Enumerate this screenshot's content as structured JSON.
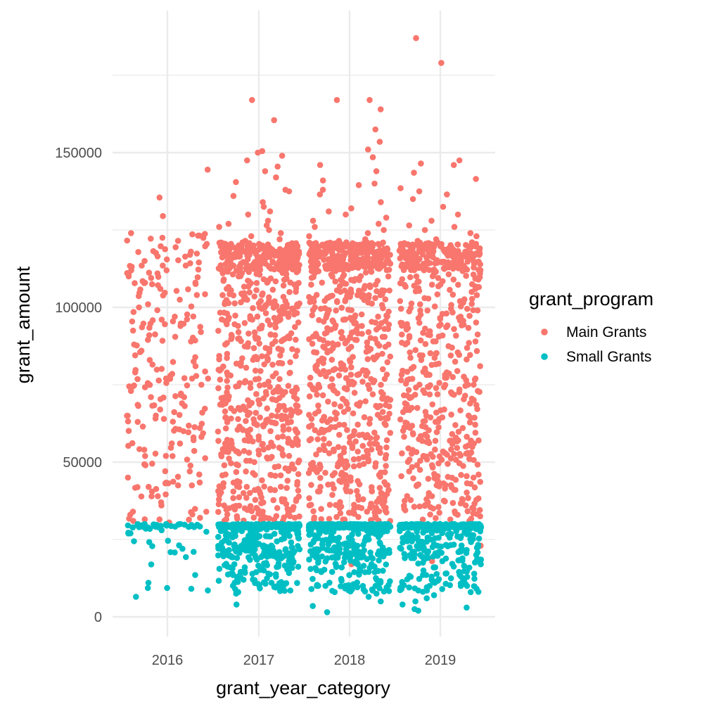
{
  "chart_data": {
    "type": "scatter",
    "jitter": true,
    "categories": [
      "2016",
      "2017",
      "2018",
      "2019"
    ],
    "xlabel": "grant_year_category",
    "ylabel": "grant_amount",
    "ylim": [
      -6000,
      191000
    ],
    "yticks": [
      0,
      50000,
      100000,
      150000
    ],
    "ytick_labels": [
      "0",
      "50000",
      "100000",
      "150000"
    ],
    "grid": true,
    "legend": {
      "title": "grant_program",
      "placement": "right",
      "entries": [
        "Main Grants",
        "Small Grants"
      ]
    },
    "colors": {
      "Main Grants": "#F8766D",
      "Small Grants": "#00BFC4"
    },
    "series": [
      {
        "name": "Main Grants",
        "groups": [
          {
            "category": "2016",
            "count": 230,
            "values": [
              144500,
              135500,
              129500,
              124000,
              123000,
              122500,
              121500,
              120500,
              118000,
              117000,
              116500,
              115000,
              113500,
              112000,
              110000,
              108000,
              106000,
              104000,
              102500,
              101000,
              100000,
              98500,
              97000,
              95500,
              94000,
              92500,
              91000,
              89500,
              88000,
              86000,
              84500,
              83000,
              81000,
              79000,
              77000,
              75000,
              73000,
              71000,
              69000,
              67000,
              65000,
              63000,
              61500,
              60000,
              58000,
              56000,
              54000,
              52000,
              49000,
              47000,
              45000,
              42000,
              40500,
              39000,
              37000,
              36000,
              34000,
              33000,
              32000,
              31000,
              30500
            ]
          },
          {
            "category": "2017",
            "count": 780,
            "values": [
              167000,
              160500,
              150500,
              150000,
              149000,
              147500,
              145500,
              144000,
              142000,
              140500,
              138000,
              137500,
              136000,
              134000,
              132500,
              131000,
              130000,
              128000,
              127000,
              126500,
              126000,
              125000,
              124000,
              123000,
              122000,
              121500,
              121000,
              120500,
              120000,
              119500,
              119000,
              118500,
              118000,
              117500,
              116500,
              115000,
              113500,
              112000,
              110000,
              108000,
              106000,
              104000,
              102000,
              100000,
              98000,
              96000,
              94000,
              92000,
              90000,
              88000,
              86000,
              84000,
              82000,
              80000,
              78000,
              76000,
              74000,
              72000,
              70000,
              68000,
              66000,
              64000,
              62000,
              60000,
              58000,
              56000,
              54000,
              52000,
              50000,
              48000,
              46000,
              44000,
              42000,
              40000,
              38000,
              36000,
              34000,
              32000,
              31000
            ]
          },
          {
            "category": "2018",
            "count": 800,
            "values": [
              167000,
              167000,
              164000,
              157500,
              153500,
              151000,
              148500,
              146000,
              144000,
              141000,
              140000,
              139500,
              138000,
              136500,
              134000,
              132000,
              131000,
              130000,
              129000,
              128000,
              127000,
              126000,
              125000,
              124000,
              123000,
              122000,
              121500,
              121000,
              120500,
              120000,
              119500,
              119000,
              118500,
              118000,
              117000,
              115500,
              114000,
              112000,
              110000,
              108000,
              106000,
              104000,
              102000,
              100000,
              98000,
              96000,
              94000,
              92000,
              90000,
              88000,
              86000,
              84000,
              82000,
              80000,
              78000,
              76000,
              74000,
              72000,
              70000,
              68000,
              66000,
              64000,
              62000,
              60000,
              58000,
              56000,
              54000,
              52000,
              50000,
              48000,
              46000,
              44000,
              42000,
              40000,
              38000,
              36000,
              34000,
              32000,
              31000,
              17000
            ]
          },
          {
            "category": "2019",
            "count": 620,
            "values": [
              187000,
              179000,
              147500,
              146500,
              146000,
              143500,
              141500,
              138500,
              137500,
              136500,
              135000,
              132500,
              130000,
              128000,
              126500,
              126000,
              125000,
              124000,
              123000,
              122000,
              121500,
              121000,
              120500,
              120000,
              119500,
              119000,
              118000,
              116500,
              115000,
              113000,
              111000,
              109000,
              107000,
              105000,
              103000,
              101000,
              99000,
              97000,
              95000,
              93000,
              91000,
              89000,
              87000,
              85000,
              83000,
              81000,
              79000,
              77000,
              75000,
              73000,
              71000,
              69000,
              67000,
              65000,
              63000,
              61000,
              59000,
              57000,
              55000,
              53000,
              51000,
              49000,
              47000,
              45000,
              43000,
              41000,
              39000,
              37500,
              35000,
              33000,
              31000,
              23000,
              18000
            ]
          }
        ]
      },
      {
        "name": "Small Grants",
        "groups": [
          {
            "category": "2016",
            "count": 60,
            "values": [
              30000,
              30000,
              30000,
              30000,
              29800,
              29500,
              29500,
              29000,
              29000,
              28500,
              28000,
              27500,
              27000,
              22000,
              6500
            ]
          },
          {
            "category": "2017",
            "count": 480,
            "values": [
              30000,
              30000,
              30000,
              30000,
              30000,
              30000,
              29800,
              29600,
              29500,
              29400,
              29200,
              29000,
              28700,
              28500,
              28200,
              28000,
              27700,
              27500,
              27200,
              27000,
              26500,
              26000,
              25500,
              25000,
              24500,
              24000,
              23500,
              23000,
              22500,
              22000,
              21500,
              21000,
              20500,
              20000,
              19500,
              19000,
              18500,
              18000,
              17500,
              17000,
              16500,
              16000,
              15000,
              14000,
              13000,
              12000,
              11000,
              10500,
              10000,
              9500,
              9000,
              8500,
              8000,
              7500,
              4000
            ]
          },
          {
            "category": "2018",
            "count": 520,
            "values": [
              30000,
              30000,
              30000,
              30000,
              30000,
              30000,
              30000,
              29800,
              29600,
              29500,
              29400,
              29200,
              29000,
              28800,
              28500,
              28200,
              28000,
              27800,
              27500,
              27200,
              27000,
              26800,
              26500,
              26000,
              25500,
              25000,
              24500,
              24000,
              23500,
              23000,
              22500,
              22000,
              21500,
              21000,
              20500,
              20000,
              20000,
              20000,
              19500,
              18500,
              17500,
              16500,
              15500,
              14500,
              13500,
              12500,
              11500,
              10000,
              10000,
              10000,
              10000,
              9500,
              9000,
              8500,
              7500,
              6500,
              5000,
              3500,
              1500
            ]
          },
          {
            "category": "2019",
            "count": 440,
            "values": [
              30000,
              30000,
              30000,
              30000,
              30000,
              30000,
              29800,
              29600,
              29500,
              29300,
              29000,
              28700,
              28500,
              28200,
              28000,
              27700,
              27500,
              27000,
              26500,
              26000,
              25500,
              25000,
              24500,
              24000,
              23500,
              23000,
              22500,
              22000,
              21500,
              21000,
              20500,
              20000,
              19500,
              19000,
              18500,
              18000,
              17000,
              16000,
              15000,
              14000,
              13000,
              12000,
              11000,
              10000,
              10000,
              10000,
              10000,
              9500,
              9000,
              8500,
              8000,
              7000,
              6000,
              5000,
              4000,
              3000,
              2500,
              2000
            ]
          }
        ]
      }
    ]
  }
}
